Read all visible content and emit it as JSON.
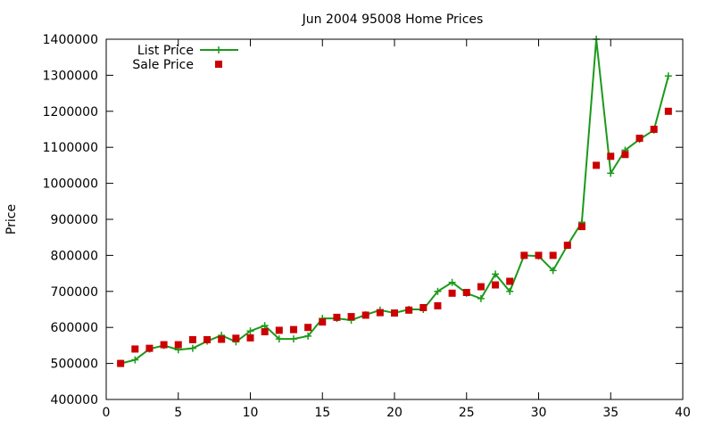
{
  "chart_data": {
    "type": "line",
    "title": "Jun 2004 95008 Home Prices",
    "xlabel": "",
    "ylabel": "Price",
    "xlim": [
      0,
      40
    ],
    "ylim": [
      400000,
      1400000
    ],
    "xticks": [
      0,
      5,
      10,
      15,
      20,
      25,
      30,
      35,
      40
    ],
    "yticks": [
      400000,
      500000,
      600000,
      700000,
      800000,
      900000,
      1000000,
      1100000,
      1200000,
      1300000,
      1400000
    ],
    "grid": false,
    "legend_position": "top-left",
    "series": [
      {
        "name": "List Price",
        "style": "line-with-plus-markers",
        "color": "#1a9a1a",
        "x": [
          1,
          2,
          3,
          4,
          5,
          6,
          7,
          8,
          9,
          10,
          11,
          12,
          13,
          14,
          15,
          16,
          17,
          18,
          19,
          20,
          21,
          22,
          23,
          24,
          25,
          26,
          27,
          28,
          29,
          30,
          31,
          32,
          33,
          34,
          35,
          36,
          37,
          38,
          39
        ],
        "values": [
          500000,
          510000,
          540000,
          550000,
          538000,
          542000,
          562000,
          578000,
          560000,
          590000,
          605000,
          568000,
          568000,
          576000,
          625000,
          625000,
          620000,
          635000,
          648000,
          640000,
          650000,
          650000,
          700000,
          725000,
          695000,
          680000,
          748000,
          700000,
          800000,
          798000,
          758000,
          828000,
          892000,
          1400000,
          1028000,
          1092000,
          1122000,
          1148000,
          1298000
        ]
      },
      {
        "name": "Sale Price",
        "style": "square-markers",
        "color": "#cc0000",
        "x": [
          1,
          2,
          3,
          4,
          5,
          6,
          7,
          8,
          9,
          10,
          11,
          12,
          13,
          14,
          15,
          16,
          17,
          18,
          19,
          20,
          21,
          22,
          23,
          24,
          25,
          26,
          27,
          28,
          29,
          30,
          31,
          32,
          33,
          34,
          35,
          36,
          37,
          38,
          39
        ],
        "values": [
          500000,
          540000,
          542000,
          552000,
          552000,
          566000,
          566000,
          567000,
          570000,
          571000,
          588000,
          592000,
          594000,
          600000,
          615000,
          628000,
          630000,
          634000,
          641000,
          640000,
          648000,
          655000,
          660000,
          695000,
          697000,
          713000,
          718000,
          728000,
          800000,
          800000,
          800000,
          828000,
          880000,
          1050000,
          1075000,
          1080000,
          1125000,
          1150000,
          1200000
        ]
      }
    ]
  }
}
